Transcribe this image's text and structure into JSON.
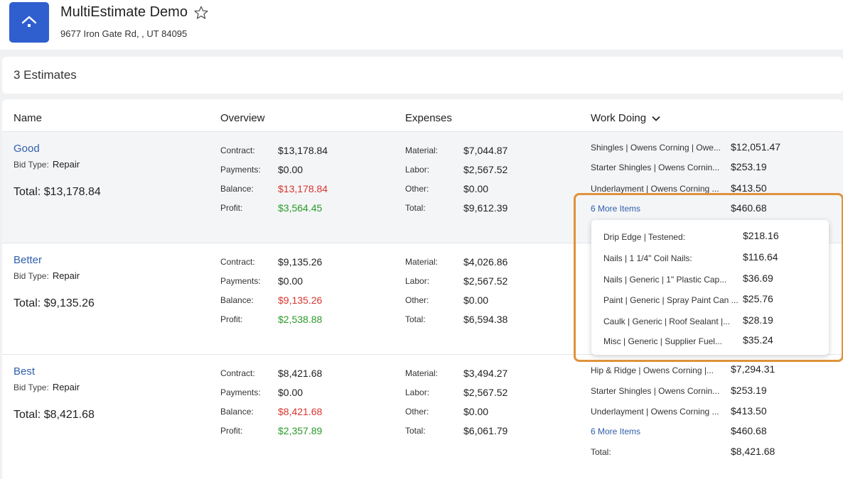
{
  "project": {
    "title": "MultiEstimate Demo",
    "address": "9677 Iron Gate Rd, , UT 84095",
    "icons": {
      "logo": "house-icon",
      "favorite": "star-outline-icon"
    }
  },
  "estimates_count": "3 Estimates",
  "columns": {
    "name": "Name",
    "overview": "Overview",
    "expenses": "Expenses",
    "work": "Work Doing"
  },
  "labels": {
    "bid_type": "Bid Type:",
    "total": "Total:",
    "contract": "Contract:",
    "payments": "Payments:",
    "balance": "Balance:",
    "profit": "Profit:",
    "material": "Material:",
    "labor": "Labor:",
    "other": "Other:",
    "exp_total": "Total:"
  },
  "colors": {
    "accent": "#2f5fcf",
    "link": "#2f5fab",
    "negative": "#d9352f",
    "positive": "#2a9a2a",
    "highlight": "#e0923b"
  },
  "rows": [
    {
      "name": "Good",
      "bid_type": "Repair",
      "total": "$13,178.84",
      "contract": "$13,178.84",
      "payments": "$0.00",
      "balance": "$13,178.84",
      "profit": "$3,564.45",
      "material": "$7,044.87",
      "labor": "$2,567.52",
      "other": "$0.00",
      "exp_total": "$9,612.39",
      "work": [
        {
          "label": "Shingles | Owens Corning | Owe...",
          "value": "$12,051.47"
        },
        {
          "label": "Starter Shingles | Owens Cornin...",
          "value": "$253.19"
        },
        {
          "label": "Underlayment | Owens Corning ...",
          "value": "$413.50"
        },
        {
          "label": "6 More Items",
          "value": "$460.68"
        }
      ]
    },
    {
      "name": "Better",
      "bid_type": "Repair",
      "total": "$9,135.26",
      "contract": "$9,135.26",
      "payments": "$0.00",
      "balance": "$9,135.26",
      "profit": "$2,538.88",
      "material": "$4,026.86",
      "labor": "$2,567.52",
      "other": "$0.00",
      "exp_total": "$6,594.38"
    },
    {
      "name": "Best",
      "bid_type": "Repair",
      "total": "$8,421.68",
      "contract": "$8,421.68",
      "payments": "$0.00",
      "balance": "$8,421.68",
      "profit": "$2,357.89",
      "material": "$3,494.27",
      "labor": "$2,567.52",
      "other": "$0.00",
      "exp_total": "$6,061.79",
      "work": [
        {
          "label": "Hip & Ridge | Owens Corning |...",
          "value": "$7,294.31"
        },
        {
          "label": "Starter Shingles | Owens Cornin...",
          "value": "$253.19"
        },
        {
          "label": "Underlayment | Owens Corning ...",
          "value": "$413.50"
        },
        {
          "label": "6 More Items",
          "value": "$460.68"
        },
        {
          "label": "Total:",
          "value": "$8,421.68"
        }
      ]
    }
  ],
  "popup_items": [
    {
      "label": "Drip Edge | Testened:",
      "value": "$218.16"
    },
    {
      "label": "Nails | 1 1/4\" Coil Nails:",
      "value": "$116.64"
    },
    {
      "label": "Nails | Generic | 1\" Plastic Cap...",
      "value": "$36.69"
    },
    {
      "label": "Paint | Generic | Spray Paint Can ...",
      "value": "$25.76"
    },
    {
      "label": "Caulk | Generic | Roof Sealant |...",
      "value": "$28.19"
    },
    {
      "label": "Misc | Generic | Supplier Fuel...",
      "value": "$35.24"
    }
  ]
}
